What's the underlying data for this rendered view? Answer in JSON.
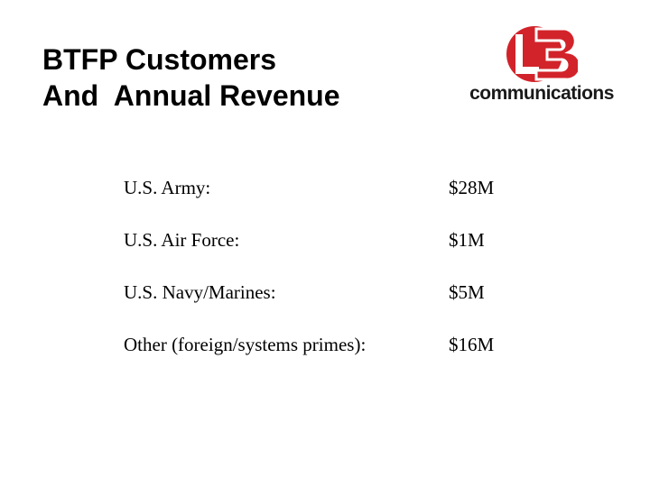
{
  "slide": {
    "title_line1": "BTFP Customers",
    "title_line2": "And  Annual Revenue"
  },
  "logo": {
    "mark_text": "L3",
    "wordmark": "communications",
    "color": "#d2232a"
  },
  "customers": [
    {
      "label": "U.S. Army:",
      "value": "$28M"
    },
    {
      "label": "U.S. Air Force:",
      "value": "$1M"
    },
    {
      "label": "U.S. Navy/Marines:",
      "value": "$5M"
    },
    {
      "label": "Other (foreign/systems primes):",
      "value": "$16M"
    }
  ]
}
